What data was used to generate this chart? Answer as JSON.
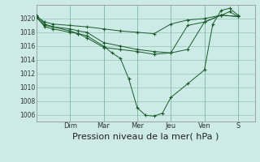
{
  "background_color": "#cceae6",
  "plot_bg_color": "#cceae6",
  "grid_color": "#88bbaa",
  "line_color": "#1a5c2a",
  "xlabel": "Pression niveau de la mer( hPa )",
  "xlabel_fontsize": 8,
  "ylim": [
    1005,
    1022
  ],
  "yticks": [
    1006,
    1008,
    1010,
    1012,
    1014,
    1016,
    1018,
    1020
  ],
  "xlim": [
    0,
    13
  ],
  "day_labels": [
    "Dim",
    "Mar",
    "Mer",
    "Jeu",
    "Ven",
    "S"
  ],
  "day_positions": [
    2,
    4,
    6,
    8,
    10,
    12
  ],
  "lines": [
    {
      "x": [
        0.0,
        0.5,
        1.0,
        2.0,
        2.5,
        3.0,
        4.0,
        4.5,
        5.0,
        5.5,
        6.0,
        6.5,
        7.0,
        7.5,
        8.0,
        9.0,
        10.0,
        10.5,
        11.0,
        11.5,
        12.0
      ],
      "y": [
        1020.5,
        1019.2,
        1018.8,
        1018.2,
        1017.8,
        1017.5,
        1016.0,
        1015.0,
        1014.2,
        1011.2,
        1007.0,
        1005.9,
        1005.8,
        1006.2,
        1008.5,
        1010.5,
        1012.5,
        1019.2,
        1021.2,
        1021.5,
        1020.5
      ]
    },
    {
      "x": [
        0.0,
        0.5,
        1.0,
        2.0,
        2.5,
        3.0,
        4.0,
        5.0,
        6.0,
        7.0,
        8.0,
        9.0,
        10.0,
        11.0,
        11.5,
        12.0
      ],
      "y": [
        1020.2,
        1018.8,
        1018.5,
        1018.0,
        1017.8,
        1017.2,
        1015.8,
        1015.5,
        1015.2,
        1014.8,
        1015.0,
        1015.5,
        1019.5,
        1020.5,
        1021.0,
        1020.3
      ]
    },
    {
      "x": [
        0.0,
        0.5,
        1.0,
        2.0,
        2.5,
        3.0,
        4.0,
        5.0,
        6.0,
        7.0,
        8.0,
        9.0,
        10.0,
        11.0,
        12.0
      ],
      "y": [
        1020.2,
        1019.0,
        1018.8,
        1018.5,
        1018.2,
        1018.0,
        1016.5,
        1016.0,
        1015.5,
        1015.2,
        1015.0,
        1019.0,
        1019.5,
        1020.5,
        1020.3
      ]
    },
    {
      "x": [
        0.0,
        0.5,
        1.0,
        2.0,
        3.0,
        4.0,
        5.0,
        6.0,
        7.0,
        8.0,
        9.0,
        10.0,
        11.0,
        12.0
      ],
      "y": [
        1020.3,
        1019.5,
        1019.2,
        1019.0,
        1018.8,
        1018.5,
        1018.2,
        1018.0,
        1017.8,
        1019.2,
        1019.8,
        1020.0,
        1020.5,
        1020.3
      ]
    }
  ]
}
